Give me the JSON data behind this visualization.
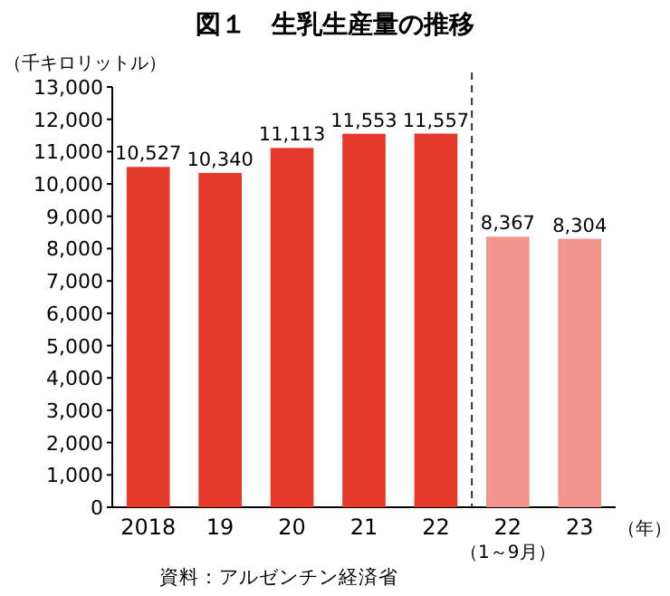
{
  "chart_data": {
    "type": "bar",
    "title": "図１　生乳生産量の推移",
    "ylabel": "（千キロリットル）",
    "categories": [
      "2018",
      "19",
      "20",
      "21",
      "22",
      "22\n（1～9月）",
      "23"
    ],
    "values": [
      10527,
      10340,
      11113,
      11553,
      11557,
      8367,
      8304
    ],
    "colors": [
      "#e5392b",
      "#e5392b",
      "#e5392b",
      "#e5392b",
      "#e5392b",
      "#f2968d",
      "#f2968d"
    ],
    "ylim": [
      0,
      13000
    ],
    "yticks": [
      0,
      {
        "value": 1000,
        "label": "1,000"
      },
      {
        "value": 2000,
        "label": "2,000"
      },
      {
        "value": 3000,
        "label": "3,000"
      },
      {
        "value": 4000,
        "label": "4,000"
      },
      {
        "value": 5000,
        "label": "5,000"
      },
      {
        "value": 6000,
        "label": "6,000"
      },
      {
        "value": 7000,
        "label": "7,000"
      },
      {
        "value": 8000,
        "label": "8,000"
      },
      {
        "value": 9000,
        "label": "9,000"
      },
      {
        "value": 10000,
        "label": "10,000"
      },
      {
        "value": 11000,
        "label": "11,000"
      },
      {
        "value": 12000,
        "label": "12,000"
      },
      {
        "value": 13000,
        "label": "13,000"
      }
    ],
    "value_labels": [
      "10,527",
      "10,340",
      "11,113",
      "11,553",
      "11,557",
      "8,367",
      "8,304"
    ],
    "annotations": [
      "（年）",
      "資料：アルゼンチン経済省"
    ]
  }
}
